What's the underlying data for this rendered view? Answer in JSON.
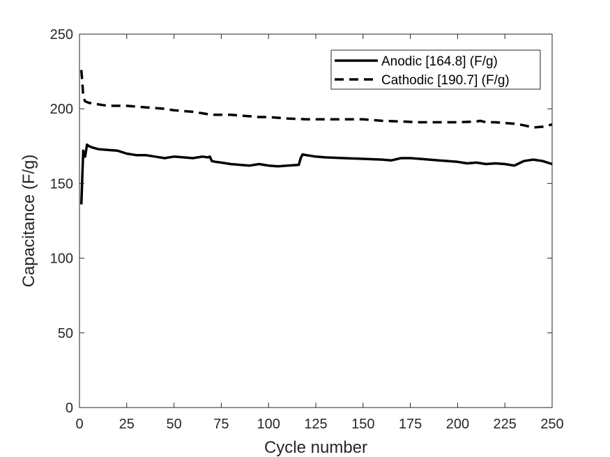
{
  "chart_data": {
    "type": "line",
    "title": "",
    "xlabel": "Cycle number",
    "ylabel": "Capacitance (F/g)",
    "xlim": [
      0,
      250
    ],
    "ylim": [
      0,
      250
    ],
    "xticks": [
      0,
      25,
      50,
      75,
      100,
      125,
      150,
      175,
      200,
      225,
      250
    ],
    "yticks": [
      0,
      50,
      100,
      150,
      200,
      250
    ],
    "grid": false,
    "legend_position": "top-right",
    "series": [
      {
        "name": "Anodic [164.8] (F/g)",
        "line_style": "solid",
        "color": "#000000",
        "x": [
          1,
          2,
          3,
          4,
          5,
          7,
          10,
          15,
          20,
          25,
          30,
          35,
          40,
          45,
          50,
          55,
          60,
          65,
          68,
          69,
          70,
          72,
          75,
          80,
          85,
          90,
          95,
          100,
          105,
          110,
          116,
          117,
          118,
          120,
          125,
          130,
          140,
          150,
          160,
          165,
          170,
          175,
          180,
          185,
          190,
          195,
          200,
          205,
          210,
          215,
          220,
          225,
          230,
          235,
          240,
          245,
          250
        ],
        "y": [
          136,
          172,
          168,
          176,
          175,
          174,
          173,
          172.5,
          172,
          170,
          169,
          169,
          168,
          167,
          168,
          167.5,
          167,
          168,
          167.5,
          168,
          165,
          164.5,
          164,
          163,
          162.5,
          162,
          163,
          162,
          161.5,
          162,
          162.5,
          167,
          169.5,
          169,
          168,
          167.5,
          167,
          166.5,
          166,
          165.5,
          167,
          167,
          166.5,
          166,
          165.5,
          165,
          164.5,
          163.5,
          164,
          163,
          163.5,
          163,
          162,
          165,
          166,
          165,
          163
        ]
      },
      {
        "name": "Cathodic [190.7] (F/g)",
        "line_style": "dashed",
        "color": "#000000",
        "x": [
          1,
          1.5,
          2,
          3,
          5,
          10,
          15,
          20,
          25,
          30,
          35,
          40,
          45,
          50,
          55,
          60,
          65,
          70,
          75,
          80,
          85,
          90,
          95,
          100,
          110,
          120,
          130,
          140,
          150,
          160,
          170,
          180,
          190,
          200,
          210,
          212,
          215,
          220,
          225,
          230,
          235,
          240,
          245,
          250
        ],
        "y": [
          226,
          218,
          208,
          205,
          204,
          203,
          202,
          202,
          202,
          201.5,
          201,
          200.5,
          200,
          199,
          198.5,
          198,
          197,
          196,
          196,
          196,
          195.5,
          195,
          194.5,
          194.5,
          193.5,
          193,
          193,
          193,
          193,
          192,
          191.5,
          191,
          191,
          191,
          191.5,
          192,
          191,
          191,
          190.5,
          190,
          189,
          187.5,
          188,
          189.5
        ]
      }
    ]
  }
}
